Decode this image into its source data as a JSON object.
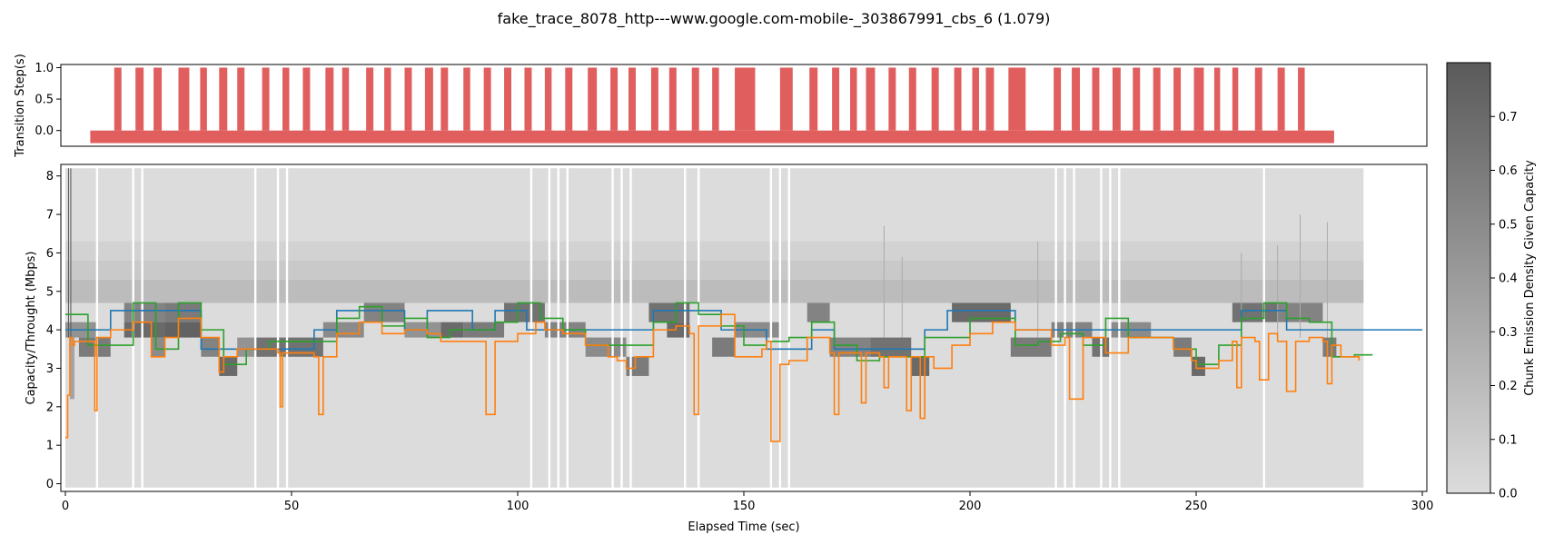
{
  "title": "fake_trace_8078_http---www.google.com-mobile-_303867991_cbs_6 (1.079)",
  "chart_data": [
    {
      "type": "bar",
      "panel": "transition",
      "ylabel": "Transition Step(s)",
      "xlim": [
        -1,
        301
      ],
      "ylim": [
        -0.25,
        1.05
      ],
      "yticks": [
        0.0,
        0.5,
        1.0
      ],
      "ytick_labels": [
        "0.0",
        "0.5",
        "1.0"
      ],
      "baseline": {
        "x_start": 5.5,
        "x_end": 280.5,
        "y0": -0.2,
        "y1": 0.0
      },
      "steps": [
        {
          "x": 10.8,
          "w": 1.6
        },
        {
          "x": 15.5,
          "w": 1.8
        },
        {
          "x": 19.5,
          "w": 1.8
        },
        {
          "x": 25.0,
          "w": 2.4
        },
        {
          "x": 29.8,
          "w": 1.5
        },
        {
          "x": 34.0,
          "w": 1.8
        },
        {
          "x": 38.0,
          "w": 1.6
        },
        {
          "x": 43.5,
          "w": 1.6
        },
        {
          "x": 48.0,
          "w": 1.5
        },
        {
          "x": 52.5,
          "w": 1.6
        },
        {
          "x": 57.5,
          "w": 1.8
        },
        {
          "x": 61.2,
          "w": 1.5
        },
        {
          "x": 66.5,
          "w": 1.6
        },
        {
          "x": 70.5,
          "w": 1.5
        },
        {
          "x": 75.0,
          "w": 1.6
        },
        {
          "x": 79.5,
          "w": 1.8
        },
        {
          "x": 83.0,
          "w": 1.6
        },
        {
          "x": 88.0,
          "w": 1.5
        },
        {
          "x": 92.5,
          "w": 1.6
        },
        {
          "x": 97.0,
          "w": 1.6
        },
        {
          "x": 101.5,
          "w": 1.6
        },
        {
          "x": 106.0,
          "w": 1.5
        },
        {
          "x": 110.5,
          "w": 1.6
        },
        {
          "x": 115.5,
          "w": 2.0
        },
        {
          "x": 120.5,
          "w": 1.6
        },
        {
          "x": 124.5,
          "w": 1.6
        },
        {
          "x": 129.5,
          "w": 1.6
        },
        {
          "x": 133.5,
          "w": 1.6
        },
        {
          "x": 138.5,
          "w": 1.6
        },
        {
          "x": 143.0,
          "w": 1.5
        },
        {
          "x": 148.0,
          "w": 4.5
        },
        {
          "x": 158.0,
          "w": 2.8
        },
        {
          "x": 164.5,
          "w": 1.8
        },
        {
          "x": 169.5,
          "w": 1.6
        },
        {
          "x": 173.5,
          "w": 1.5
        },
        {
          "x": 177.0,
          "w": 2.0
        },
        {
          "x": 182.0,
          "w": 1.6
        },
        {
          "x": 186.5,
          "w": 1.6
        },
        {
          "x": 191.5,
          "w": 1.6
        },
        {
          "x": 196.5,
          "w": 1.6
        },
        {
          "x": 200.5,
          "w": 1.5
        },
        {
          "x": 203.5,
          "w": 1.8
        },
        {
          "x": 208.5,
          "w": 3.8
        },
        {
          "x": 218.5,
          "w": 1.6
        },
        {
          "x": 222.5,
          "w": 1.8
        },
        {
          "x": 227.0,
          "w": 1.6
        },
        {
          "x": 231.5,
          "w": 1.8
        },
        {
          "x": 236.0,
          "w": 1.6
        },
        {
          "x": 240.5,
          "w": 1.6
        },
        {
          "x": 245.0,
          "w": 1.6
        },
        {
          "x": 249.5,
          "w": 2.2
        },
        {
          "x": 254.0,
          "w": 1.3
        },
        {
          "x": 258.0,
          "w": 1.3
        },
        {
          "x": 263.0,
          "w": 1.6
        },
        {
          "x": 268.0,
          "w": 1.6
        },
        {
          "x": 272.5,
          "w": 1.5
        }
      ]
    },
    {
      "type": "line",
      "panel": "capacity",
      "xlabel": "Elapsed Time (sec)",
      "ylabel": "Capacity/Throught (Mbps)",
      "xlim": [
        -1,
        301
      ],
      "ylim": [
        -0.2,
        8.3
      ],
      "xticks": [
        0,
        50,
        100,
        150,
        200,
        250,
        300
      ],
      "yticks": [
        0,
        1,
        2,
        3,
        4,
        5,
        6,
        7,
        8
      ],
      "density_background": {
        "x_start": 0,
        "x_end": 287,
        "gaps": [
          7,
          15,
          17,
          42,
          47,
          49,
          103,
          107,
          109,
          111,
          121,
          123,
          125,
          137,
          140,
          156,
          158,
          160,
          219,
          221,
          223,
          229,
          231,
          233,
          265
        ],
        "levels": [
          {
            "y0": 5.8,
            "y1": 6.3,
            "value": 0.06
          },
          {
            "y0": 5.3,
            "y1": 5.8,
            "value": 0.12
          },
          {
            "y0": 4.7,
            "y1": 5.3,
            "value": 0.2
          }
        ]
      },
      "density_blocks": [
        {
          "x0": 0,
          "x1": 7,
          "y0": 3.8,
          "y1": 4.2,
          "v": 0.45
        },
        {
          "x0": 1,
          "x1": 2,
          "y0": 2.2,
          "y1": 3.8,
          "v": 0.35
        },
        {
          "x0": 3,
          "x1": 10,
          "y0": 3.3,
          "y1": 3.8,
          "v": 0.6
        },
        {
          "x0": 13,
          "x1": 22,
          "y0": 4.2,
          "y1": 4.7,
          "v": 0.55
        },
        {
          "x0": 13,
          "x1": 22,
          "y0": 3.8,
          "y1": 4.2,
          "v": 0.7
        },
        {
          "x0": 19,
          "x1": 22,
          "y0": 3.3,
          "y1": 3.8,
          "v": 0.5
        },
        {
          "x0": 22,
          "x1": 30,
          "y0": 4.2,
          "y1": 4.7,
          "v": 0.6
        },
        {
          "x0": 22,
          "x1": 30,
          "y0": 3.8,
          "y1": 4.2,
          "v": 0.75
        },
        {
          "x0": 30,
          "x1": 34,
          "y0": 3.3,
          "y1": 3.8,
          "v": 0.55
        },
        {
          "x0": 34,
          "x1": 38,
          "y0": 2.8,
          "y1": 3.3,
          "v": 0.7
        },
        {
          "x0": 38,
          "x1": 42,
          "y0": 3.3,
          "y1": 3.8,
          "v": 0.45
        },
        {
          "x0": 42,
          "x1": 57,
          "y0": 3.3,
          "y1": 3.8,
          "v": 0.65
        },
        {
          "x0": 57,
          "x1": 66,
          "y0": 3.8,
          "y1": 4.2,
          "v": 0.5
        },
        {
          "x0": 66,
          "x1": 75,
          "y0": 4.2,
          "y1": 4.7,
          "v": 0.55
        },
        {
          "x0": 75,
          "x1": 83,
          "y0": 3.8,
          "y1": 4.2,
          "v": 0.45
        },
        {
          "x0": 83,
          "x1": 88,
          "y0": 3.8,
          "y1": 4.2,
          "v": 0.7
        },
        {
          "x0": 88,
          "x1": 97,
          "y0": 3.8,
          "y1": 4.2,
          "v": 0.6
        },
        {
          "x0": 97,
          "x1": 106,
          "y0": 4.2,
          "y1": 4.7,
          "v": 0.65
        },
        {
          "x0": 106,
          "x1": 115,
          "y0": 3.8,
          "y1": 4.2,
          "v": 0.55
        },
        {
          "x0": 115,
          "x1": 124,
          "y0": 3.3,
          "y1": 3.8,
          "v": 0.5
        },
        {
          "x0": 124,
          "x1": 129,
          "y0": 2.8,
          "y1": 3.3,
          "v": 0.6
        },
        {
          "x0": 129,
          "x1": 138,
          "y0": 4.2,
          "y1": 4.7,
          "v": 0.65
        },
        {
          "x0": 133,
          "x1": 138,
          "y0": 3.8,
          "y1": 4.2,
          "v": 0.7
        },
        {
          "x0": 143,
          "x1": 148,
          "y0": 3.3,
          "y1": 3.8,
          "v": 0.6
        },
        {
          "x0": 148,
          "x1": 158,
          "y0": 3.8,
          "y1": 4.2,
          "v": 0.5
        },
        {
          "x0": 164,
          "x1": 169,
          "y0": 4.2,
          "y1": 4.7,
          "v": 0.55
        },
        {
          "x0": 169,
          "x1": 178,
          "y0": 3.3,
          "y1": 3.8,
          "v": 0.55
        },
        {
          "x0": 178,
          "x1": 187,
          "y0": 3.3,
          "y1": 3.8,
          "v": 0.65
        },
        {
          "x0": 187,
          "x1": 191,
          "y0": 2.8,
          "y1": 3.3,
          "v": 0.7
        },
        {
          "x0": 196,
          "x1": 209,
          "y0": 4.2,
          "y1": 4.7,
          "v": 0.7
        },
        {
          "x0": 209,
          "x1": 218,
          "y0": 3.3,
          "y1": 3.8,
          "v": 0.6
        },
        {
          "x0": 218,
          "x1": 227,
          "y0": 3.8,
          "y1": 4.2,
          "v": 0.55
        },
        {
          "x0": 227,
          "x1": 231,
          "y0": 3.3,
          "y1": 3.8,
          "v": 0.65
        },
        {
          "x0": 231,
          "x1": 240,
          "y0": 3.8,
          "y1": 4.2,
          "v": 0.5
        },
        {
          "x0": 245,
          "x1": 249,
          "y0": 3.3,
          "y1": 3.8,
          "v": 0.6
        },
        {
          "x0": 249,
          "x1": 252,
          "y0": 2.8,
          "y1": 3.3,
          "v": 0.7
        },
        {
          "x0": 258,
          "x1": 268,
          "y0": 4.2,
          "y1": 4.7,
          "v": 0.65
        },
        {
          "x0": 268,
          "x1": 278,
          "y0": 4.2,
          "y1": 4.7,
          "v": 0.55
        },
        {
          "x0": 278,
          "x1": 281,
          "y0": 3.3,
          "y1": 3.8,
          "v": 0.6
        }
      ],
      "series": [
        {
          "color": "#1f77b4",
          "step": true,
          "x": [
            0,
            4,
            10,
            20,
            30,
            34,
            42,
            55,
            60,
            70,
            75,
            80,
            90,
            95,
            102,
            110,
            120,
            125,
            130,
            145,
            150,
            155,
            165,
            170,
            180,
            190,
            195,
            210,
            220,
            230,
            240,
            250,
            260,
            265,
            270,
            280,
            300
          ],
          "y": [
            4.0,
            4.0,
            4.5,
            4.5,
            3.5,
            3.5,
            3.5,
            4.0,
            4.5,
            4.5,
            4.0,
            4.5,
            4.0,
            4.5,
            4.0,
            4.0,
            4.0,
            4.0,
            4.5,
            4.0,
            4.0,
            3.5,
            4.0,
            3.5,
            3.5,
            4.0,
            4.5,
            4.0,
            4.0,
            4.0,
            4.0,
            4.0,
            4.5,
            4.5,
            4.0,
            4.0,
            4.0
          ]
        },
        {
          "color": "#2ca02c",
          "step": true,
          "x": [
            0,
            5,
            10,
            15,
            20,
            25,
            30,
            35,
            40,
            45,
            55,
            60,
            65,
            70,
            75,
            80,
            85,
            90,
            95,
            100,
            105,
            110,
            115,
            120,
            125,
            130,
            135,
            140,
            145,
            150,
            155,
            160,
            165,
            170,
            175,
            180,
            190,
            195,
            200,
            210,
            215,
            220,
            225,
            230,
            235,
            240,
            245,
            250,
            255,
            260,
            265,
            270,
            275,
            280,
            285,
            289
          ],
          "y": [
            4.4,
            3.6,
            3.6,
            4.7,
            3.5,
            4.7,
            4.0,
            3.1,
            3.5,
            3.7,
            3.7,
            4.3,
            4.6,
            4.1,
            4.3,
            3.8,
            4.0,
            4.0,
            4.2,
            4.7,
            4.3,
            4.0,
            3.6,
            3.6,
            3.6,
            4.2,
            4.7,
            4.4,
            4.1,
            3.6,
            3.7,
            3.8,
            4.2,
            3.6,
            3.2,
            3.3,
            3.8,
            3.8,
            4.3,
            3.6,
            3.7,
            3.9,
            3.6,
            4.3,
            3.8,
            3.8,
            3.5,
            3.1,
            3.6,
            4.3,
            4.7,
            4.3,
            4.2,
            3.3,
            3.35,
            3.35
          ]
        },
        {
          "color": "#ff7f0e",
          "step": true,
          "x": [
            0,
            0.5,
            1,
            1.5,
            2,
            6,
            6.5,
            7,
            10,
            15,
            19,
            22,
            25,
            30,
            34,
            35,
            38,
            42,
            47,
            47.5,
            48,
            55,
            56,
            57,
            60,
            65,
            70,
            75,
            80,
            83,
            90,
            92,
            93,
            95,
            100,
            104,
            106,
            110,
            115,
            120,
            122,
            124,
            126,
            130,
            135,
            138,
            139,
            140,
            145,
            148,
            154,
            155,
            156,
            158,
            160,
            164,
            169,
            170,
            171,
            175,
            176,
            177,
            180,
            181,
            182,
            185,
            186,
            187,
            189,
            190,
            192,
            196,
            200,
            205,
            210,
            218,
            221,
            222,
            225,
            230,
            235,
            240,
            245,
            249,
            250,
            255,
            258,
            259,
            260,
            263,
            264,
            266,
            268,
            270,
            272,
            275,
            278,
            279,
            280,
            282,
            286
          ],
          "y": [
            1.2,
            2.3,
            3.8,
            3.6,
            3.7,
            3.7,
            1.9,
            3.8,
            4.0,
            4.2,
            3.3,
            3.8,
            4.3,
            3.8,
            2.9,
            3.3,
            3.5,
            3.5,
            3.4,
            2.0,
            3.4,
            3.3,
            1.8,
            3.3,
            3.9,
            4.2,
            3.9,
            4.0,
            3.9,
            3.7,
            3.7,
            3.7,
            1.8,
            3.7,
            3.9,
            4.2,
            4.0,
            3.9,
            3.6,
            3.3,
            3.2,
            3.0,
            3.3,
            4.0,
            4.1,
            3.9,
            1.8,
            4.1,
            4.4,
            3.3,
            3.5,
            3.7,
            1.1,
            3.1,
            3.2,
            3.8,
            3.4,
            1.8,
            3.4,
            3.4,
            2.1,
            3.4,
            3.3,
            2.5,
            3.3,
            3.3,
            1.9,
            3.3,
            1.7,
            3.3,
            3.0,
            3.6,
            3.9,
            4.2,
            4.0,
            3.6,
            3.8,
            2.2,
            3.8,
            3.4,
            3.8,
            3.8,
            3.5,
            3.2,
            3.0,
            3.2,
            3.7,
            2.5,
            3.8,
            3.7,
            2.7,
            3.9,
            3.7,
            2.4,
            3.7,
            3.8,
            3.7,
            2.6,
            3.6,
            3.3,
            3.2
          ]
        }
      ],
      "spikes": [
        {
          "x": 0.7,
          "y": 8.2,
          "color": "#555555"
        },
        {
          "x": 1.2,
          "y": 8.2,
          "color": "#555555"
        },
        {
          "x": 181,
          "y": 6.7,
          "color": "#aaaaaa"
        },
        {
          "x": 185,
          "y": 5.9,
          "color": "#aaaaaa"
        },
        {
          "x": 215,
          "y": 6.3,
          "color": "#aaaaaa"
        },
        {
          "x": 260,
          "y": 6.0,
          "color": "#aaaaaa"
        },
        {
          "x": 268,
          "y": 6.2,
          "color": "#aaaaaa"
        },
        {
          "x": 273,
          "y": 7.0,
          "color": "#aaaaaa"
        },
        {
          "x": 279,
          "y": 6.8,
          "color": "#aaaaaa"
        }
      ]
    }
  ],
  "colorbar": {
    "label": "Chunk Emission Density Given Capacity",
    "range": [
      0.0,
      0.8
    ],
    "ticks": [
      0.0,
      0.1,
      0.2,
      0.3,
      0.4,
      0.5,
      0.6,
      0.7
    ],
    "tick_labels": [
      "0.0",
      "0.1",
      "0.2",
      "0.3",
      "0.4",
      "0.5",
      "0.6",
      "0.7"
    ],
    "color_low": "#dcdcdc",
    "color_high": "#5a5a5a"
  }
}
